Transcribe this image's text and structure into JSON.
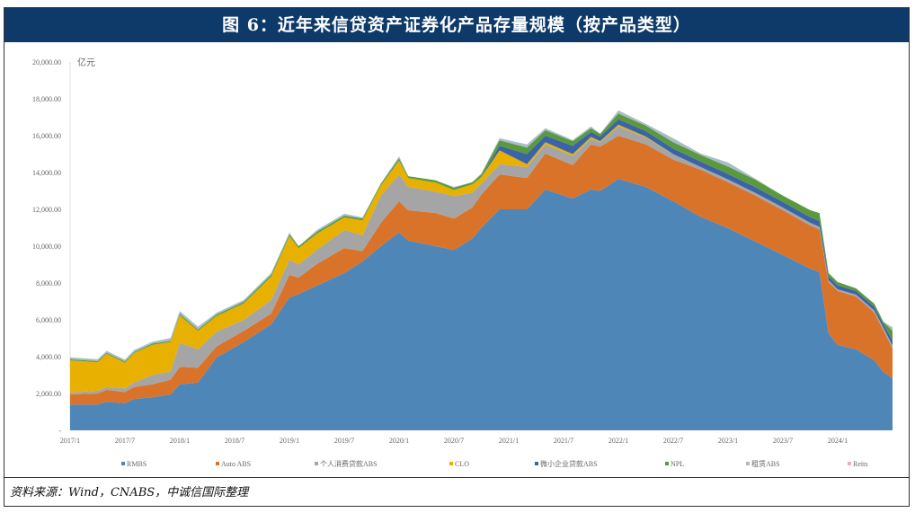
{
  "title": "图 6：近年来信贷资产证券化产品存量规模（按产品类型）",
  "source": "资料来源：Wind，CNABS，中诚信国际整理",
  "chart_data": {
    "type": "area",
    "stacked": true,
    "title": "图 6：近年来信贷资产证券化产品存量规模（按产品类型）",
    "ylabel": "亿元",
    "ylim": [
      0,
      20000
    ],
    "yticks": [
      "-",
      "2,000.00",
      "4,000.00",
      "6,000.00",
      "8,000.00",
      "10,000.00",
      "12,000.00",
      "14,000.00",
      "16,000.00",
      "18,000.00",
      "20,000.00"
    ],
    "xticks": [
      "2017/1",
      "2017/7",
      "2018/1",
      "2018/7",
      "2019/1",
      "2019/7",
      "2020/1",
      "2020/7",
      "2021/1",
      "2021/7",
      "2022/1",
      "2022/7",
      "2023/1",
      "2023/7",
      "2024/1"
    ],
    "legend_position": "bottom",
    "x": [
      "2017/1",
      "2017/4",
      "2017/5",
      "2017/7",
      "2017/8",
      "2017/10",
      "2017/12",
      "2018/1",
      "2018/3",
      "2018/5",
      "2018/8",
      "2018/11",
      "2019/1",
      "2019/2",
      "2019/4",
      "2019/7",
      "2019/9",
      "2019/11",
      "2020/1",
      "2020/2",
      "2020/5",
      "2020/7",
      "2020/9",
      "2020/10",
      "2020/12",
      "2021/3",
      "2021/5",
      "2021/8",
      "2021/10",
      "2021/11",
      "2022/1",
      "2022/4",
      "2022/7",
      "2022/10",
      "2023/1",
      "2023/4",
      "2023/7",
      "2023/10",
      "2023/11",
      "2023/12",
      "2024/1",
      "2024/3",
      "2024/5",
      "2024/6",
      "2024/7"
    ],
    "series": [
      {
        "name": "RMBS",
        "color": "#4f86b8",
        "values": [
          1400,
          1400,
          1550,
          1480,
          1700,
          1800,
          1950,
          2500,
          2600,
          3950,
          4800,
          5760,
          7220,
          7400,
          7860,
          8540,
          9170,
          10000,
          10740,
          10300,
          10000,
          9800,
          10400,
          11000,
          12000,
          12000,
          13080,
          12590,
          13080,
          13000,
          13660,
          13220,
          12440,
          11600,
          10980,
          10250,
          9520,
          8780,
          8600,
          5270,
          4640,
          4400,
          3800,
          3170,
          2830
        ]
      },
      {
        "name": "Auto ABS",
        "color": "#d9732a",
        "values": [
          550,
          600,
          650,
          600,
          650,
          700,
          800,
          950,
          800,
          600,
          600,
          580,
          1220,
          900,
          1170,
          1360,
          560,
          1270,
          1700,
          1650,
          1800,
          1700,
          1700,
          1800,
          1900,
          1700,
          1950,
          1810,
          2440,
          2400,
          2340,
          2310,
          2260,
          2550,
          2490,
          2490,
          2430,
          2340,
          2300,
          2780,
          2920,
          2870,
          2590,
          2250,
          1610
        ]
      },
      {
        "name": "个人消费贷款ABS",
        "color": "#a5a5a5",
        "values": [
          100,
          150,
          150,
          200,
          250,
          500,
          450,
          1300,
          1000,
          800,
          600,
          740,
          830,
          700,
          780,
          980,
          860,
          1470,
          1460,
          1270,
          1160,
          1220,
          800,
          600,
          550,
          600,
          490,
          500,
          310,
          250,
          500,
          370,
          300,
          150,
          150,
          150,
          150,
          150,
          150,
          100,
          100,
          100,
          120,
          150,
          160
        ]
      },
      {
        "name": "CLO",
        "color": "#e8b000",
        "values": [
          1750,
          1550,
          1800,
          1400,
          1600,
          1650,
          1600,
          1500,
          1000,
          850,
          900,
          1270,
          1270,
          900,
          870,
          680,
          810,
          560,
          740,
          480,
          490,
          330,
          450,
          350,
          750,
          150,
          130,
          100,
          100,
          50,
          100,
          50,
          0,
          0,
          0,
          0,
          0,
          0,
          0,
          0,
          0,
          0,
          0,
          0,
          0
        ]
      },
      {
        "name": "微小企业贷款ABS",
        "color": "#3b64a8",
        "values": [
          0,
          0,
          0,
          0,
          0,
          0,
          0,
          0,
          0,
          0,
          0,
          0,
          0,
          0,
          0,
          0,
          0,
          0,
          0,
          0,
          0,
          0,
          0,
          0,
          250,
          550,
          350,
          450,
          270,
          250,
          300,
          300,
          300,
          300,
          300,
          320,
          300,
          300,
          320,
          200,
          200,
          200,
          200,
          200,
          300
        ]
      },
      {
        "name": "NPL",
        "color": "#5a9a3c",
        "values": [
          60,
          60,
          60,
          60,
          60,
          60,
          60,
          80,
          80,
          80,
          80,
          100,
          100,
          100,
          100,
          100,
          100,
          100,
          120,
          100,
          120,
          120,
          120,
          150,
          300,
          350,
          300,
          250,
          200,
          150,
          300,
          300,
          350,
          350,
          400,
          400,
          340,
          380,
          430,
          190,
          190,
          140,
          170,
          130,
          500
        ]
      },
      {
        "name": "租赁ABS",
        "color": "#a9bccc",
        "values": [
          100,
          100,
          100,
          100,
          100,
          100,
          150,
          150,
          150,
          100,
          100,
          100,
          100,
          0,
          100,
          100,
          60,
          0,
          120,
          0,
          0,
          50,
          0,
          50,
          110,
          170,
          100,
          60,
          100,
          0,
          170,
          90,
          210,
          80,
          220,
          50,
          0,
          0,
          0,
          0,
          0,
          0,
          0,
          0,
          200
        ]
      },
      {
        "name": "Reits",
        "color": "#e3b4b4",
        "values": [
          0,
          0,
          0,
          0,
          0,
          0,
          0,
          0,
          0,
          0,
          0,
          0,
          0,
          0,
          0,
          0,
          0,
          0,
          0,
          0,
          0,
          0,
          0,
          0,
          0,
          0,
          0,
          0,
          0,
          0,
          0,
          0,
          0,
          0,
          0,
          0,
          0,
          0,
          0,
          0,
          0,
          0,
          0,
          0,
          0
        ]
      }
    ]
  }
}
